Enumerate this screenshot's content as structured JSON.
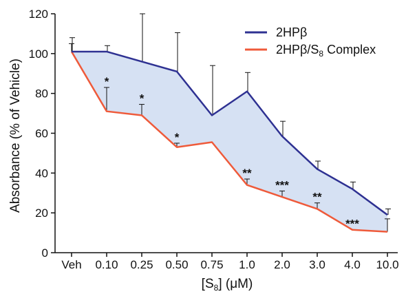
{
  "chart_data": {
    "type": "line",
    "categories": [
      "Veh",
      "0.10",
      "0.25",
      "0.50",
      "0.75",
      "1.0",
      "2.0",
      "3.0",
      "4.0",
      "10.0"
    ],
    "ylabel": "Absorbance (% of Vehicle)",
    "xlabel_parts": {
      "main": "[S",
      "sub": "8",
      "end": "] (μM)"
    },
    "ylim": [
      0,
      120
    ],
    "yticks": [
      0,
      20,
      40,
      60,
      80,
      100,
      120
    ],
    "grid": false,
    "legend_position": "top-right",
    "fill_between_series": true,
    "series": [
      {
        "name": "2HPβ",
        "color": "#2e3192",
        "values": [
          101,
          101,
          96,
          91,
          69,
          81,
          58.5,
          42,
          32,
          19
        ],
        "error_upper": [
          108,
          104,
          120,
          110.5,
          94,
          90.5,
          66,
          46,
          35.5,
          22
        ]
      },
      {
        "name_parts": {
          "main": "2HPβ/S",
          "sub": "8",
          "end": " Complex"
        },
        "color": "#ef5a3a",
        "values": [
          101,
          71,
          69,
          53,
          55.5,
          34,
          28,
          22,
          11.5,
          10.5
        ],
        "error_upper": [
          105,
          83,
          74.5,
          55,
          55.5,
          37,
          31,
          25,
          11.5,
          17
        ]
      }
    ],
    "fill_color": "#d6e1f3",
    "annotations": [
      {
        "category": "0.10",
        "text": "*",
        "y": 83
      },
      {
        "category": "0.25",
        "text": "*",
        "y": 74.5
      },
      {
        "category": "0.50",
        "text": "*",
        "y": 55
      },
      {
        "category": "1.0",
        "text": "**",
        "y": 37
      },
      {
        "category": "2.0",
        "text": "***",
        "y": 31
      },
      {
        "category": "3.0",
        "text": "**",
        "y": 25
      },
      {
        "category": "4.0",
        "text": "***",
        "y": 11.5
      }
    ]
  }
}
